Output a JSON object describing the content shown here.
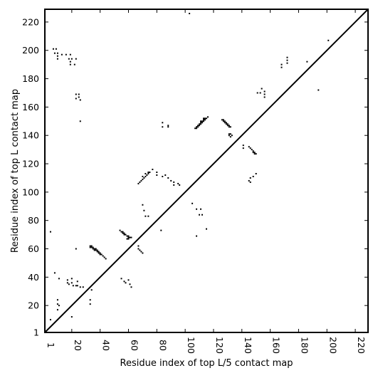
{
  "chart_data": {
    "type": "scatter",
    "title": "",
    "xlabel": "Residue index of top L/5 contact map",
    "ylabel": "Residue index of top L contact map",
    "xlim": [
      1,
      229
    ],
    "ylim": [
      1,
      229
    ],
    "x_ticks": [
      1,
      20,
      40,
      60,
      80,
      100,
      120,
      140,
      160,
      180,
      200,
      220
    ],
    "y_ticks": [
      1,
      20,
      40,
      60,
      80,
      100,
      120,
      140,
      160,
      180,
      200,
      220
    ],
    "grid": false,
    "diagonal": true,
    "marker_color": "#000000",
    "series": [
      {
        "points": [
          [
            33,
            62
          ],
          [
            34,
            62
          ],
          [
            33,
            61
          ],
          [
            34,
            61
          ],
          [
            35,
            61
          ],
          [
            35,
            60
          ],
          [
            36,
            60
          ],
          [
            37,
            60
          ],
          [
            36,
            59
          ],
          [
            37,
            59
          ],
          [
            38,
            59
          ],
          [
            38,
            58
          ],
          [
            39,
            58
          ],
          [
            39,
            57
          ],
          [
            40,
            57
          ],
          [
            40,
            56
          ],
          [
            41,
            56
          ],
          [
            42,
            55
          ],
          [
            43,
            54
          ],
          [
            44,
            53
          ],
          [
            54,
            73
          ],
          [
            55,
            72
          ],
          [
            56,
            72
          ],
          [
            56,
            71
          ],
          [
            57,
            71
          ],
          [
            57,
            70
          ],
          [
            58,
            70
          ],
          [
            59,
            69
          ],
          [
            60,
            69
          ],
          [
            60,
            68
          ],
          [
            61,
            68
          ],
          [
            62,
            68
          ],
          [
            59,
            67
          ],
          [
            60,
            67
          ],
          [
            67,
            106
          ],
          [
            68,
            107
          ],
          [
            69,
            108
          ],
          [
            70,
            109
          ],
          [
            71,
            110
          ],
          [
            72,
            111
          ],
          [
            73,
            112
          ],
          [
            74,
            113
          ],
          [
            75,
            114
          ],
          [
            70,
            111
          ],
          [
            72,
            113
          ],
          [
            74,
            114
          ],
          [
            107,
            145
          ],
          [
            108,
            145
          ],
          [
            108,
            146
          ],
          [
            109,
            146
          ],
          [
            109,
            147
          ],
          [
            110,
            147
          ],
          [
            110,
            148
          ],
          [
            111,
            148
          ],
          [
            111,
            149
          ],
          [
            112,
            149
          ],
          [
            112,
            150
          ],
          [
            113,
            150
          ],
          [
            113,
            151
          ],
          [
            114,
            151
          ],
          [
            114,
            152
          ],
          [
            115,
            152
          ],
          [
            116,
            153
          ],
          [
            111,
            150
          ],
          [
            113,
            152
          ],
          [
            126,
            151
          ],
          [
            127,
            151
          ],
          [
            127,
            150
          ],
          [
            128,
            150
          ],
          [
            128,
            149
          ],
          [
            129,
            149
          ],
          [
            129,
            148
          ],
          [
            130,
            148
          ],
          [
            130,
            147
          ],
          [
            131,
            147
          ],
          [
            131,
            146
          ],
          [
            132,
            146
          ],
          [
            131,
            141
          ],
          [
            132,
            141
          ],
          [
            133,
            140
          ],
          [
            131,
            140
          ],
          [
            132,
            139
          ],
          [
            145,
            132
          ],
          [
            146,
            131
          ],
          [
            147,
            130
          ],
          [
            148,
            129
          ],
          [
            149,
            128
          ],
          [
            150,
            127
          ],
          [
            148,
            128
          ],
          [
            149,
            127
          ],
          [
            5,
            72
          ],
          [
            7,
            201
          ],
          [
            8,
            198
          ],
          [
            9,
            201
          ],
          [
            10,
            198
          ],
          [
            10,
            196
          ],
          [
            10,
            194
          ],
          [
            13,
            197
          ],
          [
            16,
            197
          ],
          [
            18,
            194
          ],
          [
            19,
            197
          ],
          [
            19,
            192
          ],
          [
            19,
            190
          ],
          [
            20,
            194
          ],
          [
            22,
            190
          ],
          [
            23,
            194
          ],
          [
            23,
            169
          ],
          [
            23,
            166
          ],
          [
            25,
            169
          ],
          [
            25,
            167
          ],
          [
            26,
            165
          ],
          [
            26,
            150
          ],
          [
            5,
            10
          ],
          [
            8,
            43
          ],
          [
            10,
            24
          ],
          [
            10,
            21
          ],
          [
            10,
            17
          ],
          [
            11,
            20
          ],
          [
            11,
            39
          ],
          [
            17,
            38
          ],
          [
            17,
            36
          ],
          [
            18,
            35
          ],
          [
            20,
            39
          ],
          [
            20,
            36
          ],
          [
            20,
            12
          ],
          [
            21,
            34
          ],
          [
            23,
            34
          ],
          [
            23,
            60
          ],
          [
            24,
            37
          ],
          [
            24,
            34
          ],
          [
            26,
            33
          ],
          [
            28,
            33
          ],
          [
            33,
            24
          ],
          [
            33,
            21
          ],
          [
            34,
            31
          ],
          [
            55,
            39
          ],
          [
            57,
            37
          ],
          [
            58,
            36
          ],
          [
            60,
            38
          ],
          [
            61,
            35
          ],
          [
            62,
            33
          ],
          [
            67,
            62
          ],
          [
            67,
            60
          ],
          [
            68,
            59
          ],
          [
            69,
            58
          ],
          [
            70,
            57
          ],
          [
            70,
            91
          ],
          [
            71,
            87
          ],
          [
            72,
            83
          ],
          [
            74,
            83
          ],
          [
            77,
            116
          ],
          [
            80,
            114
          ],
          [
            80,
            112
          ],
          [
            83,
            73
          ],
          [
            84,
            111
          ],
          [
            84,
            149
          ],
          [
            84,
            146
          ],
          [
            86,
            112
          ],
          [
            88,
            147
          ],
          [
            88,
            146
          ],
          [
            88,
            110
          ],
          [
            90,
            108
          ],
          [
            92,
            107
          ],
          [
            92,
            105
          ],
          [
            95,
            106
          ],
          [
            96,
            105
          ],
          [
            103,
            226
          ],
          [
            105,
            92
          ],
          [
            108,
            69
          ],
          [
            108,
            88
          ],
          [
            110,
            84
          ],
          [
            111,
            88
          ],
          [
            112,
            84
          ],
          [
            115,
            74
          ],
          [
            141,
            133
          ],
          [
            141,
            131
          ],
          [
            145,
            108
          ],
          [
            146,
            107
          ],
          [
            146,
            110
          ],
          [
            148,
            111
          ],
          [
            150,
            113
          ],
          [
            151,
            170
          ],
          [
            153,
            170
          ],
          [
            154,
            173
          ],
          [
            156,
            171
          ],
          [
            156,
            169
          ],
          [
            156,
            167
          ],
          [
            168,
            190
          ],
          [
            168,
            188
          ],
          [
            172,
            195
          ],
          [
            172,
            193
          ],
          [
            172,
            191
          ],
          [
            186,
            192
          ],
          [
            194,
            172
          ],
          [
            201,
            207
          ]
        ]
      }
    ]
  }
}
